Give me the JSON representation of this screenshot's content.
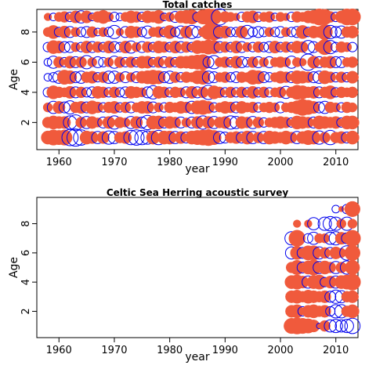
{
  "chart_data": [
    {
      "type": "scatter",
      "subtype": "residual-bubble",
      "title": "Total catches",
      "xlabel": "year",
      "ylabel": "Age",
      "xlim": [
        1956,
        2014
      ],
      "ylim": [
        0.2,
        9.5
      ],
      "xticks": [
        1960,
        1970,
        1980,
        1990,
        2000,
        2010
      ],
      "yticks": [
        2,
        4,
        6,
        8
      ],
      "positive_color": "#f05a3c",
      "negative_color": "#0000ee",
      "x": [
        1958,
        2013
      ],
      "ages": [
        1,
        2,
        3,
        4,
        5,
        6,
        7,
        8,
        9
      ],
      "residuals": {
        "9": [
          0.2,
          -0.2,
          0.3,
          0.4,
          -0.3,
          0.5,
          -0.5,
          0.5,
          -0.2,
          0.4,
          0.6,
          0.3,
          -0.3,
          -0.2,
          0.3,
          0.5,
          0.4,
          -0.3,
          0.5,
          0.4,
          0.6,
          -0.2,
          0.3,
          -0.4,
          0.5,
          0.6,
          0.7,
          -0.3,
          0.7,
          0.9,
          0.8,
          -0.9,
          0.4,
          0.3,
          0.2,
          -0.3,
          0.4,
          0.5,
          -0.3,
          0.3,
          0.4,
          -0.2,
          0.3,
          0.2,
          -0.3,
          0.4,
          0.3,
          0.5,
          0.6,
          0.9,
          0.8,
          0.4,
          -0.3,
          0.5,
          0.9,
          0.9
        ],
        "8": [
          0.3,
          0.6,
          -0.3,
          0.5,
          -0.4,
          0.3,
          -0.3,
          -0.4,
          0.4,
          -0.2,
          0.3,
          -0.3,
          -0.6,
          0.2,
          -0.4,
          0.5,
          0.4,
          -0.3,
          -0.5,
          0.3,
          0.4,
          -0.3,
          0.6,
          -0.3,
          -0.5,
          0.5,
          -0.6,
          -0.4,
          0.3,
          0.8,
          0.9,
          -0.5,
          0.5,
          -0.3,
          -0.3,
          0.5,
          -0.6,
          -0.3,
          -0.4,
          -0.3,
          0.3,
          -0.3,
          -0.4,
          0.3,
          -0.3,
          -0.4,
          0.6,
          -0.3,
          0.5,
          0.4,
          0.8,
          -0.6,
          -0.4,
          -0.5,
          0.4,
          0.5
        ],
        "7": [
          -0.3,
          0.6,
          0.5,
          -0.4,
          -0.4,
          0.3,
          -0.3,
          0.5,
          -0.4,
          0.4,
          -0.3,
          0.5,
          -0.4,
          -0.3,
          0.5,
          -0.5,
          0.3,
          -0.4,
          0.4,
          -0.3,
          0.5,
          0.4,
          -0.3,
          0.5,
          -0.4,
          0.4,
          -0.3,
          0.6,
          0.5,
          0.7,
          0.6,
          -0.4,
          0.4,
          -0.3,
          0.5,
          -0.4,
          0.3,
          -0.3,
          0.4,
          -0.3,
          -0.4,
          0.5,
          -0.3,
          0.4,
          -0.3,
          0.5,
          0.4,
          -0.6,
          -0.4,
          0.3,
          0.8,
          -0.6,
          -0.3,
          0.4,
          0.3,
          -0.3
        ],
        "6": [
          -0.2,
          -0.5,
          0.4,
          -0.3,
          0.5,
          -0.4,
          0.4,
          -0.6,
          0.3,
          -0.4,
          -0.3,
          0.3,
          -0.5,
          0.4,
          -0.3,
          0.4,
          -0.3,
          0.5,
          0.5,
          -0.3,
          0.4,
          -0.4,
          0.4,
          -0.3,
          0.5,
          0.5,
          0.6,
          0.7,
          0.8,
          -0.4,
          -0.6,
          0.3,
          0.4,
          -0.3,
          0.5,
          -0.4,
          -0.3,
          0.4,
          -0.4,
          0.3,
          -0.4,
          0.3,
          0.4,
          0.3,
          -0.5,
          0.3,
          0.2,
          -0.9,
          0.5,
          -0.4,
          0.4,
          0.5,
          -0.4,
          -0.4,
          0.3,
          0.4
        ],
        "5": [
          -0.2,
          -0.3,
          -0.5,
          0.7,
          0.6,
          -0.4,
          -0.5,
          0.4,
          0.5,
          -0.3,
          0.4,
          -0.5,
          -0.5,
          0.3,
          -0.4,
          0.3,
          -0.4,
          0.5,
          0.6,
          0.7,
          0.6,
          -0.4,
          -0.5,
          0.4,
          -0.3,
          0.4,
          0.3,
          0.6,
          0.7,
          -0.5,
          -0.4,
          0.3,
          0.4,
          -0.3,
          -0.4,
          0.4,
          0.3,
          0.7,
          0.6,
          -0.4,
          -0.3,
          0.3,
          0.5,
          0.4,
          -0.4,
          0.6,
          0.5,
          0.4,
          -0.4,
          -0.5,
          0.6,
          0.4,
          -0.3,
          0.4,
          -0.3,
          0.5
        ],
        "4": [
          -0.3,
          0.6,
          0.4,
          0.3,
          0.5,
          -0.4,
          0.4,
          -0.3,
          -0.4,
          0.5,
          0.4,
          -0.3,
          0.4,
          -0.3,
          -0.4,
          0.5,
          0.4,
          0.3,
          -0.4,
          -0.6,
          0.5,
          0.4,
          -0.3,
          0.4,
          0.3,
          -0.4,
          0.5,
          -0.4,
          0.4,
          -0.7,
          0.6,
          0.4,
          -0.3,
          0.4,
          -0.3,
          0.4,
          -0.3,
          0.5,
          -0.3,
          0.4,
          -0.3,
          0.3,
          0.4,
          -0.5,
          0.4,
          0.7,
          0.6,
          0.4,
          0.5,
          -0.4,
          0.4,
          0.6,
          -0.3,
          0.4,
          0.3,
          0.4
        ],
        "3": [
          0.3,
          -0.5,
          0.5,
          -0.4,
          -0.6,
          0.4,
          0.5,
          -0.4,
          0.6,
          0.4,
          -0.3,
          0.4,
          0.5,
          -0.3,
          0.4,
          -0.4,
          0.3,
          0.5,
          0.5,
          -0.4,
          0.3,
          -0.3,
          0.4,
          0.3,
          0.5,
          0.4,
          -0.5,
          0.6,
          0.7,
          0.5,
          -0.3,
          0.3,
          0.5,
          0.4,
          -0.4,
          0.5,
          0.3,
          0.4,
          -0.3,
          0.3,
          0.4,
          0.3,
          -0.4,
          0.3,
          0.4,
          0.6,
          0.9,
          0.7,
          0.5,
          -0.4,
          -0.5,
          0.4,
          0.3,
          -0.3,
          0.4,
          0.3
        ],
        "2": [
          0.4,
          0.6,
          0.5,
          0.5,
          -0.6,
          -0.8,
          0.4,
          -0.5,
          0.5,
          0.3,
          -0.4,
          0.5,
          -0.6,
          0.4,
          0.3,
          -0.5,
          0.5,
          -0.4,
          -0.7,
          0.6,
          0.6,
          -0.4,
          0.5,
          0.4,
          -0.4,
          0.3,
          -0.4,
          0.5,
          -0.6,
          0.5,
          -0.5,
          0.4,
          0.5,
          -0.6,
          -0.5,
          0.5,
          0.4,
          -0.5,
          0.4,
          -0.3,
          0.3,
          0.4,
          0.5,
          0.4,
          -0.3,
          0.6,
          0.5,
          0.4,
          -0.4,
          0.6,
          0.5,
          0.4,
          0.5,
          -0.3,
          0.6,
          0.6
        ],
        "1": [
          0.6,
          0.8,
          0.7,
          0.8,
          -0.9,
          -1.0,
          -0.8,
          0.6,
          0.5,
          -0.5,
          0.5,
          -0.6,
          -0.5,
          0.4,
          0.5,
          -0.7,
          -0.8,
          -0.7,
          -0.6,
          0.6,
          -0.7,
          0.6,
          0.6,
          -0.5,
          0.5,
          -0.4,
          0.6,
          0.7,
          0.8,
          0.9,
          0.7,
          -0.5,
          -0.4,
          0.4,
          0.5,
          -0.4,
          0.6,
          -0.5,
          0.4,
          -0.5,
          0.6,
          0.5,
          0.4,
          0.6,
          0.4,
          -0.5,
          0.5,
          0.7,
          0.6,
          -0.6,
          0.4,
          -0.7,
          0.4,
          0.5,
          -0.4,
          0.6
        ]
      }
    },
    {
      "type": "scatter",
      "subtype": "residual-bubble",
      "title": "Celtic Sea Herring acoustic survey",
      "xlabel": "year",
      "ylabel": "Age",
      "xlim": [
        1956,
        2014
      ],
      "ylim": [
        0.2,
        9.8
      ],
      "xticks": [
        1960,
        1970,
        1980,
        1990,
        2000,
        2010
      ],
      "yticks": [
        2,
        4,
        6,
        8
      ],
      "positive_color": "#f05a3c",
      "negative_color": "#0000ee",
      "x": [
        2002,
        2013
      ],
      "ages": [
        1,
        2,
        3,
        4,
        5,
        6,
        7,
        8,
        9
      ],
      "residuals": {
        "9": [
          null,
          null,
          null,
          null,
          null,
          null,
          null,
          null,
          -0.2,
          0.1,
          -0.3,
          0.8
        ],
        "8": [
          null,
          0.2,
          null,
          0.2,
          -0.5,
          null,
          -0.6,
          -0.7,
          -0.6,
          0.3,
          -0.6,
          0.3
        ],
        "7": [
          -0.6,
          0.9,
          null,
          -0.3,
          -0.5,
          0.3,
          0.3,
          -0.5,
          -0.6,
          0.5,
          -0.4,
          0.9
        ],
        "6": [
          -0.5,
          0.6,
          -0.4,
          0.7,
          0.7,
          -0.5,
          0.4,
          -0.4,
          0.5,
          0.3,
          -0.7,
          0.8
        ],
        "5": [
          0.4,
          0.7,
          -0.4,
          0.6,
          0.8,
          -0.5,
          0.6,
          0.4,
          -0.5,
          0.4,
          -0.6,
          0.7
        ],
        "4": [
          0.6,
          0.7,
          0.5,
          -0.5,
          0.6,
          0.7,
          -0.3,
          0.5,
          -0.5,
          0.6,
          0.7,
          0.9
        ],
        "3": [
          0.5,
          0.6,
          0.4,
          0.6,
          0.5,
          0.4,
          0.5,
          -0.4,
          -0.6,
          -0.5,
          0.4,
          0.5
        ],
        "2": [
          0.5,
          0.6,
          -0.3,
          0.5,
          0.6,
          0.4,
          0.5,
          -0.3,
          -0.6,
          -0.6,
          0.4,
          0.6
        ],
        "1": [
          0.8,
          0.9,
          0.8,
          0.7,
          0.5,
          -0.1,
          0.4,
          -0.5,
          -0.6,
          -0.5,
          -0.6,
          -0.8
        ]
      }
    }
  ]
}
